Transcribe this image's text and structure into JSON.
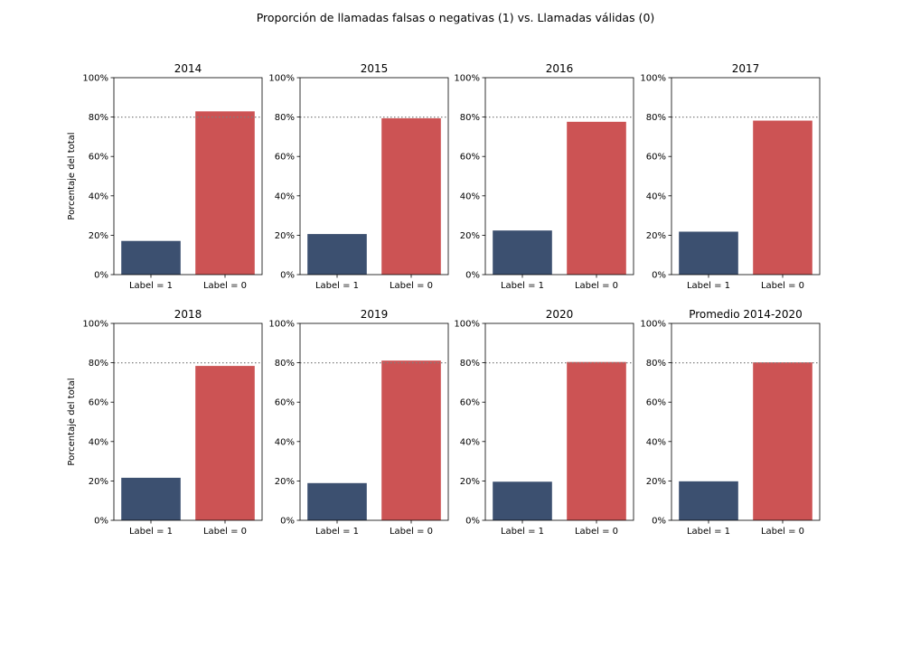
{
  "figure": {
    "title": "Proporción de llamadas falsas o negativas (1) vs. Llamadas válidas (0)"
  },
  "style": {
    "color_label_1": "#3c5070",
    "color_label_0": "#cc5354",
    "reference_line_color": "#808080"
  },
  "chart_data": [
    {
      "type": "bar",
      "title": "2014",
      "categories": [
        "Label = 1",
        "Label = 0"
      ],
      "values": [
        17.1,
        82.9
      ],
      "ylabel": "Porcentaje del total",
      "ylim": [
        0,
        100
      ],
      "yticks": [
        "0%",
        "20%",
        "40%",
        "60%",
        "80%",
        "100%"
      ],
      "reference_line": 80
    },
    {
      "type": "bar",
      "title": "2015",
      "categories": [
        "Label = 1",
        "Label = 0"
      ],
      "values": [
        20.6,
        79.4
      ],
      "ylabel": "",
      "ylim": [
        0,
        100
      ],
      "yticks": [
        "0%",
        "20%",
        "40%",
        "60%",
        "80%",
        "100%"
      ],
      "reference_line": 80
    },
    {
      "type": "bar",
      "title": "2016",
      "categories": [
        "Label = 1",
        "Label = 0"
      ],
      "values": [
        22.4,
        77.6
      ],
      "ylabel": "",
      "ylim": [
        0,
        100
      ],
      "yticks": [
        "0%",
        "20%",
        "40%",
        "60%",
        "80%",
        "100%"
      ],
      "reference_line": 80
    },
    {
      "type": "bar",
      "title": "2017",
      "categories": [
        "Label = 1",
        "Label = 0"
      ],
      "values": [
        21.8,
        78.2
      ],
      "ylabel": "",
      "ylim": [
        0,
        100
      ],
      "yticks": [
        "0%",
        "20%",
        "40%",
        "60%",
        "80%",
        "100%"
      ],
      "reference_line": 80
    },
    {
      "type": "bar",
      "title": "2018",
      "categories": [
        "Label = 1",
        "Label = 0"
      ],
      "values": [
        21.6,
        78.4
      ],
      "ylabel": "Porcentaje del total",
      "ylim": [
        0,
        100
      ],
      "yticks": [
        "0%",
        "20%",
        "40%",
        "60%",
        "80%",
        "100%"
      ],
      "reference_line": 80
    },
    {
      "type": "bar",
      "title": "2019",
      "categories": [
        "Label = 1",
        "Label = 0"
      ],
      "values": [
        18.9,
        81.1
      ],
      "ylabel": "",
      "ylim": [
        0,
        100
      ],
      "yticks": [
        "0%",
        "20%",
        "40%",
        "60%",
        "80%",
        "100%"
      ],
      "reference_line": 80
    },
    {
      "type": "bar",
      "title": "2020",
      "categories": [
        "Label = 1",
        "Label = 0"
      ],
      "values": [
        19.6,
        80.4
      ],
      "ylabel": "",
      "ylim": [
        0,
        100
      ],
      "yticks": [
        "0%",
        "20%",
        "40%",
        "60%",
        "80%",
        "100%"
      ],
      "reference_line": 80
    },
    {
      "type": "bar",
      "title": "Promedio 2014-2020",
      "categories": [
        "Label = 1",
        "Label = 0"
      ],
      "values": [
        19.8,
        80.2
      ],
      "ylabel": "",
      "ylim": [
        0,
        100
      ],
      "yticks": [
        "0%",
        "20%",
        "40%",
        "60%",
        "80%",
        "100%"
      ],
      "reference_line": 80
    }
  ]
}
